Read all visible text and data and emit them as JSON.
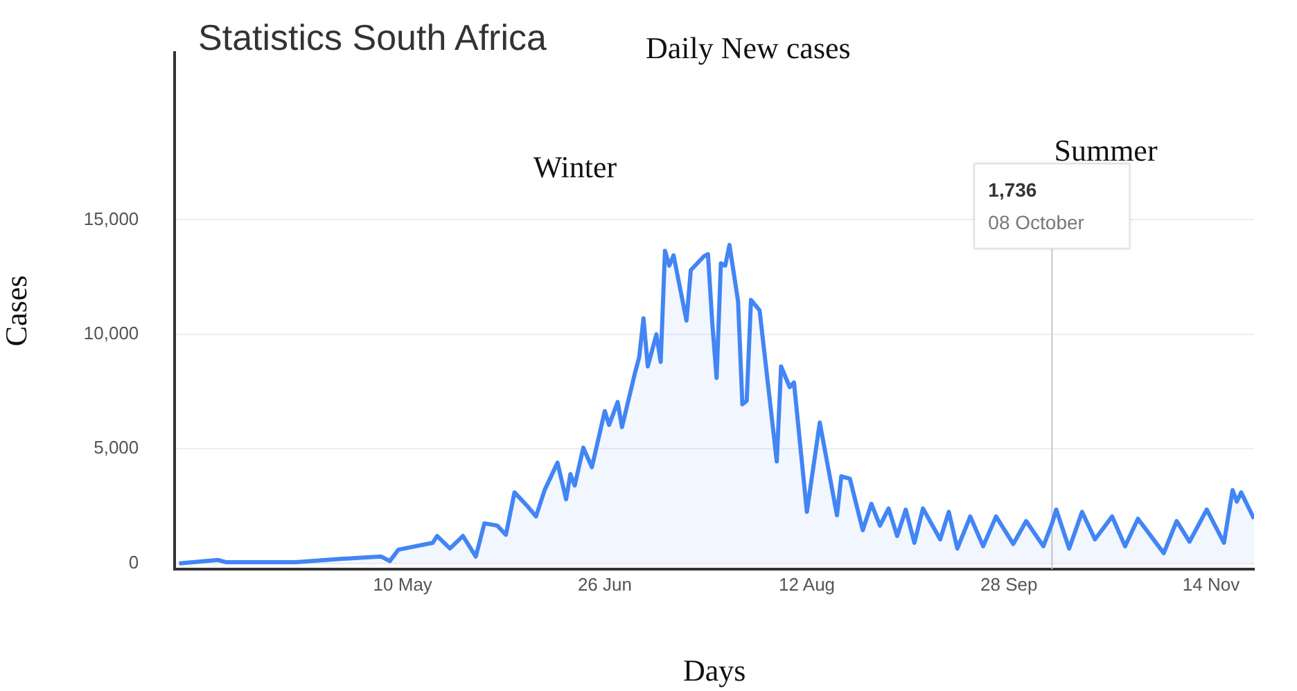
{
  "chart_data": {
    "type": "area",
    "title": "Statistics South Africa",
    "subtitle": "Daily New cases",
    "xlabel": "Days",
    "ylabel": "Cases",
    "x": [
      "--03-19",
      "--03-28",
      "--03-30",
      "--04-15",
      "--04-26",
      "--05-05",
      "--05-07",
      "--05-09",
      "--05-17",
      "--05-18",
      "--05-21",
      "--05-24",
      "--05-27",
      "--05-29",
      "--06-01",
      "--06-03",
      "--06-05",
      "--06-08",
      "--06-10",
      "--06-12",
      "--06-15",
      "--06-17",
      "--06-18",
      "--06-19",
      "--06-21",
      "--06-23",
      "--06-26",
      "--06-27",
      "--06-29",
      "--06-30",
      "--07-03",
      "--07-04",
      "--07-05",
      "--07-06",
      "--07-08",
      "--07-09",
      "--07-10",
      "--07-11",
      "--07-12",
      "--07-15",
      "--07-16",
      "--07-19",
      "--07-20",
      "--07-21",
      "--07-22",
      "--07-23",
      "--07-24",
      "--07-25",
      "--07-27",
      "--07-28",
      "--07-29",
      "--07-30",
      "--08-01",
      "--08-05",
      "--08-06",
      "--08-08",
      "--08-09",
      "--08-12",
      "--08-15",
      "--08-19",
      "--08-20",
      "--08-22",
      "--08-25",
      "--08-27",
      "--08-29",
      "--08-31",
      "--09-02",
      "--09-04",
      "--09-06",
      "--09-08",
      "--09-12",
      "--09-14",
      "--09-16",
      "--09-19",
      "--09-22",
      "--09-25",
      "--09-29",
      "--10-02",
      "--10-06",
      "--10-08",
      "--10-09",
      "--10-12",
      "--10-15",
      "--10-18",
      "--10-22",
      "--10-25",
      "--10-28",
      "--11-03",
      "--11-06",
      "--11-09",
      "--11-13",
      "--11-17",
      "--11-19",
      "--11-20",
      "--11-21",
      "--11-24"
    ],
    "series": [
      {
        "color": "#4285f4",
        "values": [
          0,
          150,
          50,
          50,
          200,
          300,
          100,
          600,
          900,
          1200,
          650,
          1200,
          300,
          1750,
          1650,
          1250,
          3100,
          2500,
          2050,
          3200,
          4400,
          2800,
          3900,
          3400,
          5050,
          4200,
          6650,
          6050,
          7050,
          5950,
          8300,
          9000,
          10700,
          8600,
          10000,
          8800,
          13650,
          13000,
          13450,
          10600,
          12800,
          13400,
          13500,
          10500,
          8100,
          13100,
          13000,
          13900,
          11450,
          6950,
          7100,
          11500,
          11050,
          4450,
          8600,
          7700,
          7900,
          2250,
          6150,
          2100,
          3800,
          3700,
          1450,
          2600,
          1650,
          2400,
          1200,
          2350,
          900,
          2400,
          1050,
          2250,
          650,
          2050,
          750,
          2050,
          850,
          1850,
          750,
          1736,
          2350,
          650,
          2250,
          1050,
          2050,
          750,
          1950,
          450,
          1850,
          950,
          2350,
          900,
          3200,
          2700,
          3100,
          1950
        ]
      }
    ],
    "xlim": [
      "--03-18",
      "--11-24"
    ],
    "xticks": [
      {
        "value": "--05-10",
        "label": "10 May"
      },
      {
        "value": "--06-26",
        "label": "26 Jun"
      },
      {
        "value": "--08-12",
        "label": "12 Aug"
      },
      {
        "value": "--09-28",
        "label": "28 Sep"
      },
      {
        "value": "--11-14",
        "label": "14 Nov"
      }
    ],
    "ylim": [
      -250,
      22300
    ],
    "yticks": [
      {
        "value": 0,
        "label": "0"
      },
      {
        "value": 5000,
        "label": "5,000"
      },
      {
        "value": 10000,
        "label": "10,000"
      },
      {
        "value": 15000,
        "label": "15,000"
      }
    ],
    "grid": "y",
    "legend": false,
    "marker": "none",
    "line_style": "solid",
    "ref_lines": [
      {
        "axis": "x",
        "value": "--10-08",
        "color": "#c8c8c8"
      }
    ],
    "annotations": [
      "Winter",
      "Summer",
      {
        "text": "1,736",
        "x": "--10-08",
        "y": 16000
      },
      {
        "text": "08 October",
        "x": "--10-08",
        "y": 14600
      }
    ]
  }
}
